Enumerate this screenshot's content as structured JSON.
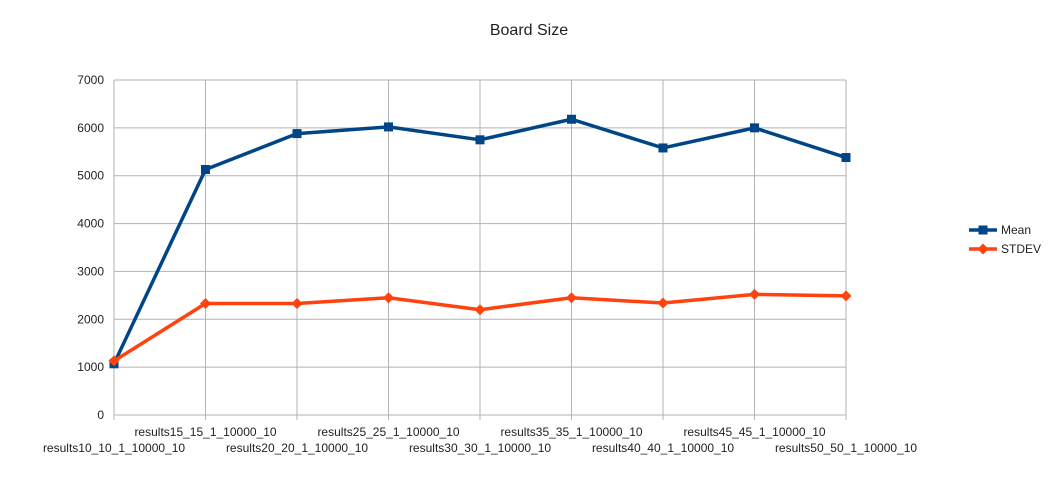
{
  "chart_data": {
    "type": "line",
    "title": "Board Size",
    "xlabel": "",
    "ylabel": "",
    "categories": [
      "results10_10_1_10000_10",
      "results15_15_1_10000_10",
      "results20_20_1_10000_10",
      "results25_25_1_10000_10",
      "results30_30_1_10000_10",
      "results35_35_1_10000_10",
      "results40_40_1_10000_10",
      "results45_45_1_10000_10",
      "results50_50_1_10000_10"
    ],
    "series": [
      {
        "name": "Mean",
        "color": "#004586",
        "marker": "square",
        "values": [
          1070,
          5130,
          5880,
          6020,
          5750,
          6180,
          5580,
          6000,
          5380
        ]
      },
      {
        "name": "STDEV",
        "color": "#ff420e",
        "marker": "diamond",
        "values": [
          1130,
          2330,
          2330,
          2450,
          2200,
          2450,
          2340,
          2520,
          2490
        ]
      }
    ],
    "ylim": [
      0,
      7000
    ],
    "yticks": [
      0,
      1000,
      2000,
      3000,
      4000,
      5000,
      6000,
      7000
    ],
    "grid": true,
    "legend_position": "right"
  }
}
